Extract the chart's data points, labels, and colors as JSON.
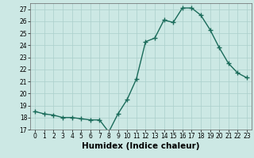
{
  "x": [
    0,
    1,
    2,
    3,
    4,
    5,
    6,
    7,
    8,
    9,
    10,
    11,
    12,
    13,
    14,
    15,
    16,
    17,
    18,
    19,
    20,
    21,
    22,
    23
  ],
  "y": [
    18.5,
    18.3,
    18.2,
    18.0,
    18.0,
    17.9,
    17.8,
    17.8,
    16.8,
    18.3,
    19.5,
    21.2,
    24.3,
    24.6,
    26.1,
    25.9,
    27.1,
    27.1,
    26.5,
    25.3,
    23.8,
    22.5,
    21.7,
    21.3
  ],
  "line_color": "#1a6b5a",
  "marker": "+",
  "markersize": 4,
  "linewidth": 1.0,
  "markeredgewidth": 1.0,
  "xlabel": "Humidex (Indice chaleur)",
  "ylim": [
    17,
    27.5
  ],
  "xlim": [
    -0.5,
    23.5
  ],
  "yticks": [
    17,
    18,
    19,
    20,
    21,
    22,
    23,
    24,
    25,
    26,
    27
  ],
  "xticks": [
    0,
    1,
    2,
    3,
    4,
    5,
    6,
    7,
    8,
    9,
    10,
    11,
    12,
    13,
    14,
    15,
    16,
    17,
    18,
    19,
    20,
    21,
    22,
    23
  ],
  "bg_color": "#cce8e4",
  "grid_color": "#aacfcb",
  "tick_label_fontsize": 5.5,
  "xlabel_fontsize": 7.5
}
